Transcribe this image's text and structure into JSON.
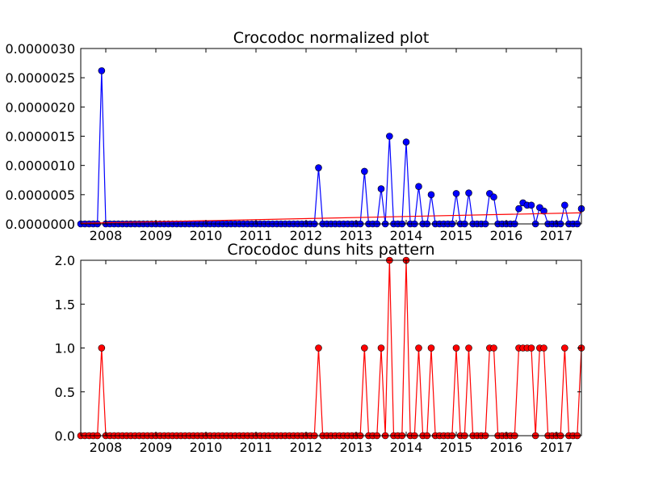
{
  "chart_data": [
    {
      "type": "line",
      "title": "Crocodoc normalized plot",
      "xlabel": "",
      "ylabel": "",
      "xlim": [
        2007.5,
        2017.5
      ],
      "ylim": [
        0,
        3e-06
      ],
      "x_ticks": [
        2008,
        2009,
        2010,
        2011,
        2012,
        2013,
        2014,
        2015,
        2016,
        2017
      ],
      "y_ticks": [
        "0.0000000",
        "0.0000005",
        "0.0000010",
        "0.0000015",
        "0.0000020",
        "0.0000025",
        "0.0000030"
      ],
      "y_tick_values": [
        0,
        5e-07,
        1e-06,
        1.5e-06,
        2e-06,
        2.5e-06,
        3e-06
      ],
      "line_color": "#0000ff",
      "marker_color": "#0000ff",
      "trend": {
        "color": "#ff0000",
        "x": [
          2007.5,
          2017.5
        ],
        "y": [
          1e-08,
          1.9e-07
        ]
      },
      "series": [
        {
          "x": [
            2007.5,
            2007.583,
            2007.667,
            2007.75,
            2007.833,
            2007.917,
            2008.0,
            2008.083,
            2008.167,
            2008.25,
            2008.333,
            2008.417,
            2008.5,
            2008.583,
            2008.667,
            2008.75,
            2008.833,
            2008.917,
            2009.0,
            2009.083,
            2009.167,
            2009.25,
            2009.333,
            2009.417,
            2009.5,
            2009.583,
            2009.667,
            2009.75,
            2009.833,
            2009.917,
            2010.0,
            2010.083,
            2010.167,
            2010.25,
            2010.333,
            2010.417,
            2010.5,
            2010.583,
            2010.667,
            2010.75,
            2010.833,
            2010.917,
            2011.0,
            2011.083,
            2011.167,
            2011.25,
            2011.333,
            2011.417,
            2011.5,
            2011.583,
            2011.667,
            2011.75,
            2011.833,
            2011.917,
            2012.0,
            2012.083,
            2012.167,
            2012.25,
            2012.333,
            2012.417,
            2012.5,
            2012.583,
            2012.667,
            2012.75,
            2012.833,
            2012.917,
            2013.0,
            2013.083,
            2013.167,
            2013.25,
            2013.333,
            2013.417,
            2013.5,
            2013.583,
            2013.667,
            2013.75,
            2013.833,
            2013.917,
            2014.0,
            2014.083,
            2014.167,
            2014.25,
            2014.333,
            2014.417,
            2014.5,
            2014.583,
            2014.667,
            2014.75,
            2014.833,
            2014.917,
            2015.0,
            2015.083,
            2015.167,
            2015.25,
            2015.333,
            2015.417,
            2015.5,
            2015.583,
            2015.667,
            2015.75,
            2015.833,
            2015.917,
            2016.0,
            2016.083,
            2016.167,
            2016.25,
            2016.333,
            2016.417,
            2016.5,
            2016.583,
            2016.667,
            2016.75,
            2016.833,
            2016.917,
            2017.0,
            2017.083,
            2017.167,
            2017.25,
            2017.333,
            2017.417,
            2017.5
          ],
          "y": [
            0,
            0,
            0,
            0,
            0,
            2.62e-06,
            0,
            0,
            0,
            0,
            0,
            0,
            0,
            0,
            0,
            0,
            0,
            0,
            0,
            0,
            0,
            0,
            0,
            0,
            0,
            0,
            0,
            0,
            0,
            0,
            0,
            0,
            0,
            0,
            0,
            0,
            0,
            0,
            0,
            0,
            0,
            0,
            0,
            0,
            0,
            0,
            0,
            0,
            0,
            0,
            0,
            0,
            0,
            0,
            0,
            0,
            0,
            9.6e-07,
            0,
            0,
            0,
            0,
            0,
            0,
            0,
            0,
            0,
            0,
            9e-07,
            0,
            0,
            0,
            6e-07,
            0,
            1.5e-06,
            0,
            0,
            0,
            1.4e-06,
            0,
            0,
            6.4e-07,
            0,
            0,
            5e-07,
            0,
            0,
            0,
            0,
            0,
            5.2e-07,
            0,
            0,
            5.3e-07,
            0,
            0,
            0,
            0,
            5.2e-07,
            4.6e-07,
            0,
            0,
            0,
            0,
            0,
            2.6e-07,
            3.6e-07,
            3.2e-07,
            3.2e-07,
            0,
            2.8e-07,
            2.2e-07,
            0,
            0,
            0,
            0,
            3.2e-07,
            0,
            0,
            0,
            2.6e-07
          ]
        }
      ]
    },
    {
      "type": "line",
      "title": "Crocodoc duns hits pattern",
      "xlabel": "",
      "ylabel": "",
      "xlim": [
        2007.5,
        2017.5
      ],
      "ylim": [
        0,
        2
      ],
      "x_ticks": [
        2008,
        2009,
        2010,
        2011,
        2012,
        2013,
        2014,
        2015,
        2016,
        2017
      ],
      "y_ticks": [
        "0.0",
        "0.5",
        "1.0",
        "1.5",
        "2.0"
      ],
      "y_tick_values": [
        0,
        0.5,
        1,
        1.5,
        2
      ],
      "line_color": "#ff0000",
      "marker_color": "#ff0000",
      "series": [
        {
          "x": [
            2007.5,
            2007.583,
            2007.667,
            2007.75,
            2007.833,
            2007.917,
            2008.0,
            2008.083,
            2008.167,
            2008.25,
            2008.333,
            2008.417,
            2008.5,
            2008.583,
            2008.667,
            2008.75,
            2008.833,
            2008.917,
            2009.0,
            2009.083,
            2009.167,
            2009.25,
            2009.333,
            2009.417,
            2009.5,
            2009.583,
            2009.667,
            2009.75,
            2009.833,
            2009.917,
            2010.0,
            2010.083,
            2010.167,
            2010.25,
            2010.333,
            2010.417,
            2010.5,
            2010.583,
            2010.667,
            2010.75,
            2010.833,
            2010.917,
            2011.0,
            2011.083,
            2011.167,
            2011.25,
            2011.333,
            2011.417,
            2011.5,
            2011.583,
            2011.667,
            2011.75,
            2011.833,
            2011.917,
            2012.0,
            2012.083,
            2012.167,
            2012.25,
            2012.333,
            2012.417,
            2012.5,
            2012.583,
            2012.667,
            2012.75,
            2012.833,
            2012.917,
            2013.0,
            2013.083,
            2013.167,
            2013.25,
            2013.333,
            2013.417,
            2013.5,
            2013.583,
            2013.667,
            2013.75,
            2013.833,
            2013.917,
            2014.0,
            2014.083,
            2014.167,
            2014.25,
            2014.333,
            2014.417,
            2014.5,
            2014.583,
            2014.667,
            2014.75,
            2014.833,
            2014.917,
            2015.0,
            2015.083,
            2015.167,
            2015.25,
            2015.333,
            2015.417,
            2015.5,
            2015.583,
            2015.667,
            2015.75,
            2015.833,
            2015.917,
            2016.0,
            2016.083,
            2016.167,
            2016.25,
            2016.333,
            2016.417,
            2016.5,
            2016.583,
            2016.667,
            2016.75,
            2016.833,
            2016.917,
            2017.0,
            2017.083,
            2017.167,
            2017.25,
            2017.333,
            2017.417,
            2017.5
          ],
          "y": [
            0,
            0,
            0,
            0,
            0,
            1,
            0,
            0,
            0,
            0,
            0,
            0,
            0,
            0,
            0,
            0,
            0,
            0,
            0,
            0,
            0,
            0,
            0,
            0,
            0,
            0,
            0,
            0,
            0,
            0,
            0,
            0,
            0,
            0,
            0,
            0,
            0,
            0,
            0,
            0,
            0,
            0,
            0,
            0,
            0,
            0,
            0,
            0,
            0,
            0,
            0,
            0,
            0,
            0,
            0,
            0,
            0,
            1,
            0,
            0,
            0,
            0,
            0,
            0,
            0,
            0,
            0,
            0,
            1,
            0,
            0,
            0,
            1,
            0,
            2,
            0,
            0,
            0,
            2,
            0,
            0,
            1,
            0,
            0,
            1,
            0,
            0,
            0,
            0,
            0,
            1,
            0,
            0,
            1,
            0,
            0,
            0,
            0,
            1,
            1,
            0,
            0,
            0,
            0,
            0,
            1,
            1,
            1,
            1,
            0,
            1,
            1,
            0,
            0,
            0,
            0,
            1,
            0,
            0,
            0,
            1
          ]
        }
      ]
    }
  ]
}
